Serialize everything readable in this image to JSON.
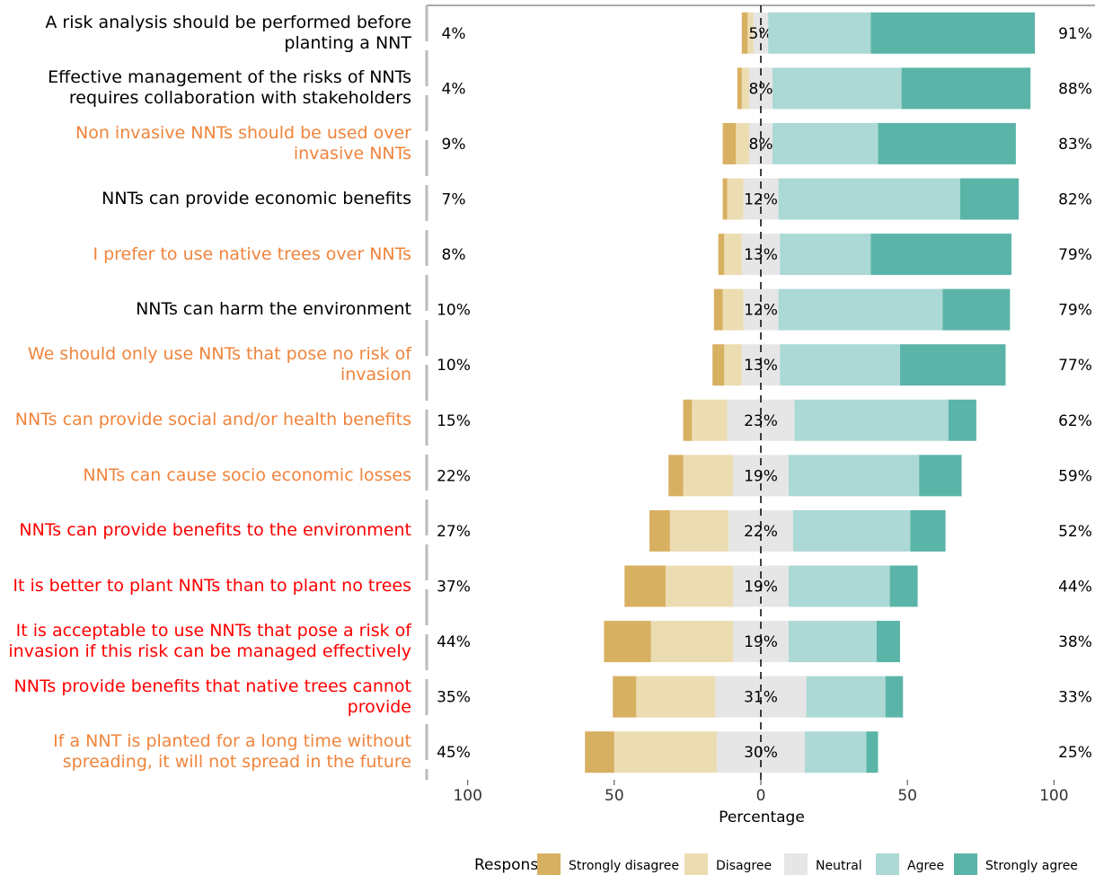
{
  "chart_data": {
    "type": "diverging-stacked-bar",
    "x_label": "Percentage",
    "legend_title": "Response",
    "categories": [
      "A risk analysis should be performed before planting a NNT",
      "Effective management of the risks of NNTs requires collaboration with stakeholders",
      "Non invasive NNTs should be used over invasive NNTs",
      "NNTs can provide economic benefits",
      "I prefer to use native trees over NNTs",
      "NNTs can harm the environment",
      "We should only use NNTs that pose no risk of invasion",
      "NNTs can provide social and/or health benefits",
      "NNTs can cause socio economic losses",
      "NNTs can provide benefits to the environment",
      "It is better to plant NNTs than to plant no trees",
      "It is acceptable to use NNTs that pose a risk of invasion if this risk can be managed effectively",
      "NNTs provide benefits that native trees cannot provide",
      "If a NNT is planted for a long time without spreading, it will not spread in the future"
    ],
    "category_colors": [
      "#000000",
      "#000000",
      "#f0843c",
      "#000000",
      "#f0843c",
      "#000000",
      "#f0843c",
      "#f0843c",
      "#f0843c",
      "#ff0000",
      "#ff0000",
      "#ff0000",
      "#ff0000",
      "#f0843c"
    ],
    "series": [
      {
        "name": "Strongly disagree",
        "color": "#d8b062",
        "side": "low",
        "values": [
          2,
          1.5,
          4.5,
          1.5,
          2,
          3,
          4,
          3,
          5,
          7,
          14,
          16,
          8,
          10
        ]
      },
      {
        "name": "Disagree",
        "color": "#ecdcb2",
        "side": "low",
        "values": [
          2,
          2.5,
          4.5,
          5.5,
          6,
          7,
          6,
          12,
          17,
          20,
          23,
          28,
          27,
          35
        ]
      },
      {
        "name": "Neutral",
        "color": "#e6e6e6",
        "side": "center",
        "values": [
          5,
          8,
          8,
          12,
          13,
          12,
          13,
          23,
          19,
          22,
          19,
          19,
          31,
          30
        ],
        "value_labels": [
          "5%",
          "8%",
          "8%",
          "12%",
          "13%",
          "12%",
          "13%",
          "23%",
          "19%",
          "22%",
          "19%",
          "19%",
          "31%",
          "30%"
        ]
      },
      {
        "name": "Agree",
        "color": "#acd9d5",
        "side": "high",
        "values": [
          35,
          44,
          36,
          62,
          31,
          56,
          41,
          52.5,
          44.5,
          40,
          34.5,
          30,
          27,
          21
        ]
      },
      {
        "name": "Strongly agree",
        "color": "#5bb4a8",
        "side": "high",
        "values": [
          56,
          44,
          47,
          20,
          48,
          23,
          36,
          9.5,
          14.5,
          12,
          9.5,
          8,
          6,
          4
        ]
      }
    ],
    "low_labels": [
      "4%",
      "4%",
      "9%",
      "7%",
      "8%",
      "10%",
      "10%",
      "15%",
      "22%",
      "27%",
      "37%",
      "44%",
      "35%",
      "45%"
    ],
    "high_labels": [
      "91%",
      "88%",
      "83%",
      "82%",
      "79%",
      "79%",
      "77%",
      "62%",
      "59%",
      "52%",
      "44%",
      "38%",
      "33%",
      "25%"
    ],
    "xlim": [
      -114,
      114
    ],
    "xticks": [
      {
        "value": -100,
        "label": "100"
      },
      {
        "value": -50,
        "label": "50"
      },
      0,
      50,
      100
    ]
  }
}
